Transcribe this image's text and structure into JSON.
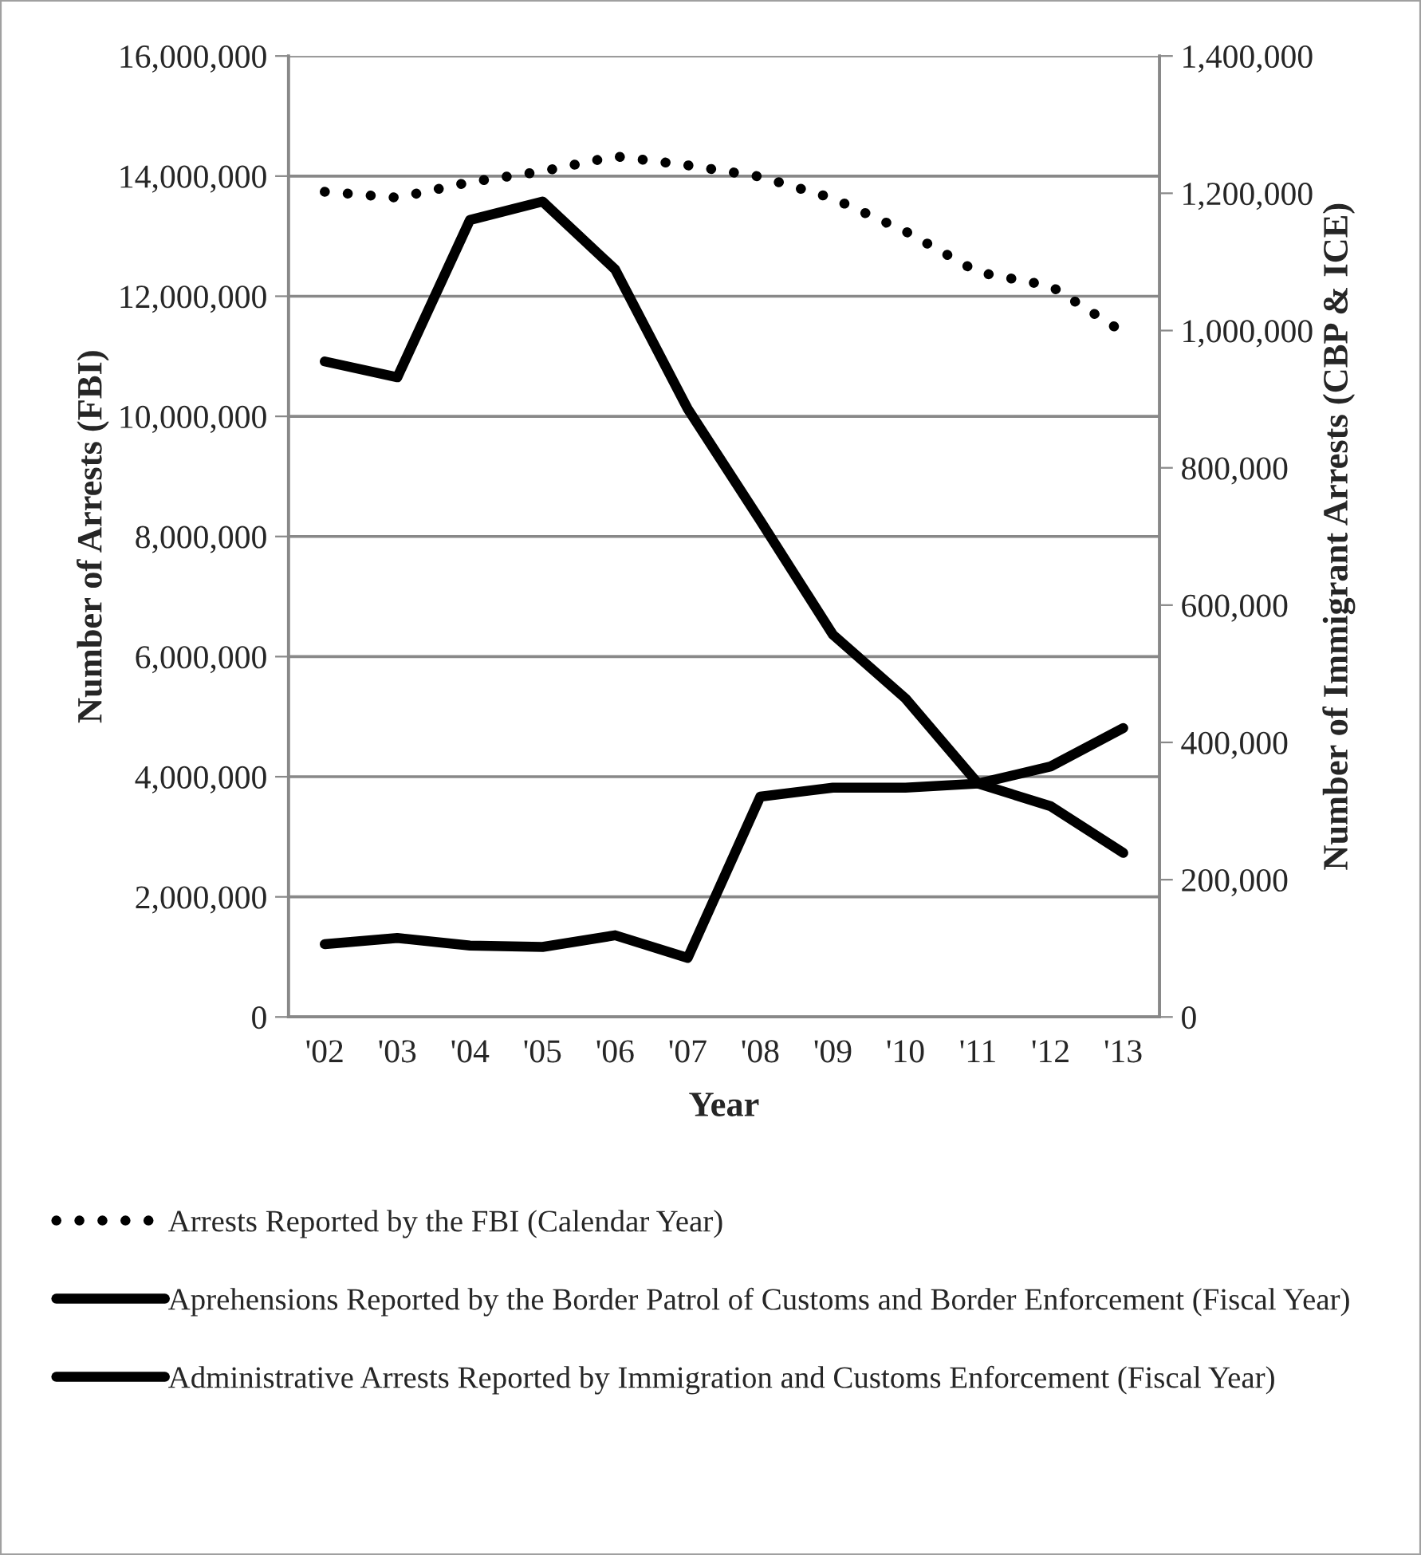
{
  "chart_data": {
    "type": "line",
    "xlabel": "Year",
    "ylabel": "Number of Arrests (FBI)",
    "y2label": "Number of Immigrant Arrests (CBP & ICE)",
    "categories": [
      "'02",
      "'03",
      "'04",
      "'05",
      "'06",
      "'07",
      "'08",
      "'09",
      "'10",
      "'11",
      "'12",
      "'13"
    ],
    "series": [
      {
        "name": "Arrests Reported by the FBI (Calendar Year)",
        "color": "#000000",
        "line_style": "dotted",
        "values": [
          13740000,
          13640000,
          13900000,
          14080000,
          14330000,
          14180000,
          13990000,
          13630000,
          13080000,
          12400000,
          12170000,
          11400000
        ]
      },
      {
        "name": "Aprehensions Reported by the Border Patrol of Customs and Border Enforcement (Fiscal Year)",
        "color": "#000000",
        "line_style": "solid",
        "axis": "y2",
        "values": [
          955000,
          932000,
          1161000,
          1188000,
          1089000,
          886000,
          723000,
          557000,
          464000,
          340000,
          307000,
          239000
        ]
      },
      {
        "name": "Administrative Arrests Reported by Immigration and Customs Enforcement (Fiscal Year)",
        "color": "#000000",
        "line_style": "solid",
        "axis": "y2",
        "values": [
          106000,
          115000,
          104000,
          102000,
          119000,
          86000,
          321000,
          334000,
          334000,
          340000,
          365000,
          421000
        ]
      }
    ],
    "ylim": [
      0,
      16000000
    ],
    "yticks": [
      {
        "value": 0,
        "label": "0"
      },
      {
        "value": 2000000,
        "label": "2,000,000"
      },
      {
        "value": 4000000,
        "label": "4,000,000"
      },
      {
        "value": 6000000,
        "label": "6,000,000"
      },
      {
        "value": 8000000,
        "label": "8,000,000"
      },
      {
        "value": 10000000,
        "label": "10,000,000"
      },
      {
        "value": 12000000,
        "label": "12,000,000"
      },
      {
        "value": 14000000,
        "label": "14,000,000"
      },
      {
        "value": 16000000,
        "label": "16,000,000"
      }
    ],
    "y2lim": [
      0,
      1400000
    ],
    "y2ticks": [
      {
        "value": 0,
        "label": "0"
      },
      {
        "value": 200000,
        "label": "200,000"
      },
      {
        "value": 400000,
        "label": "400,000"
      },
      {
        "value": 600000,
        "label": "600,000"
      },
      {
        "value": 800000,
        "label": "800,000"
      },
      {
        "value": 1000000,
        "label": "1,000,000"
      },
      {
        "value": 1200000,
        "label": "1,200,000"
      },
      {
        "value": 1400000,
        "label": "1,400,000"
      }
    ],
    "grid": "y",
    "legend": "bottom"
  }
}
